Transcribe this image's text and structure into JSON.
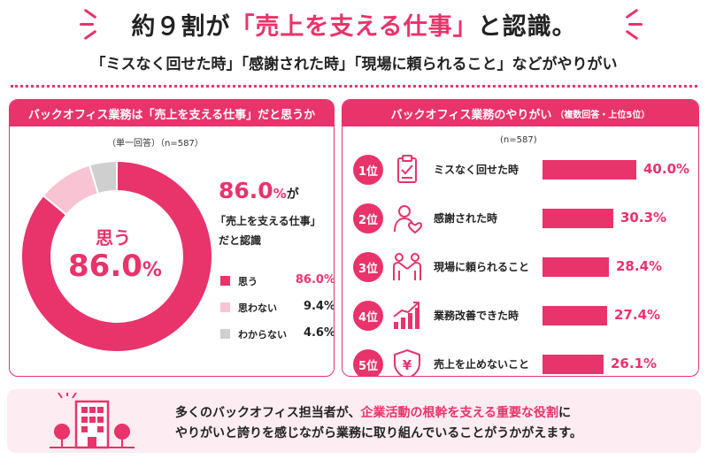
{
  "header": {
    "title_pre": "約９割が",
    "title_highlight": "「売上を支える仕事」",
    "title_post": "と認識。",
    "subtitle": "「ミスなく回せた時」「感謝された時」「現場に頼られること」などがやりがい"
  },
  "left_panel": {
    "title": "バックオフィス業務は「売上を支える仕事」だと思うか",
    "note": "（単一回答）（n=587）",
    "center_label": "思う",
    "center_value": "86.0",
    "center_unit": "%",
    "callout_value": "86.0",
    "callout_unit": "%",
    "callout_ga": "が",
    "callout_line2": "「売上を支える仕事」",
    "callout_line3": "だと認識"
  },
  "right_panel": {
    "title": "バックオフィス業務のやりがい",
    "title_sub": "（複数回答・上位5位）",
    "note": "(n=587)"
  },
  "bottom": {
    "line1_pre": "多くのバックオフィス担当者が、",
    "line1_highlight": "企業活動の根幹を支える重要な役割",
    "line1_post": "に",
    "line2": "やりがいと誇りを感じながら業務に取り組んでいることがうかがえます。"
  },
  "colors": {
    "accent": "#e8336b",
    "light_pink": "#f8c3d3",
    "gray": "#cfcfcf",
    "bottom_bg": "#fdecf1"
  },
  "chart_data": [
    {
      "type": "pie",
      "categories": [
        "思う",
        "思わない",
        "わからない"
      ],
      "values": [
        86.0,
        9.4,
        4.6
      ],
      "value_labels": [
        "86.0%",
        "9.4%",
        "4.6%"
      ],
      "colors": [
        "#e8336b",
        "#f8c3d3",
        "#cfcfcf"
      ],
      "donut": true,
      "legend": "right"
    },
    {
      "type": "bar",
      "orientation": "horizontal",
      "ranks": [
        "1位",
        "2位",
        "3位",
        "4位",
        "5位"
      ],
      "categories": [
        "ミスなく回せた時",
        "感謝された時",
        "現場に頼られること",
        "業務改善できた時",
        "売上を止めないこと"
      ],
      "values": [
        40.0,
        30.3,
        28.4,
        27.4,
        26.1
      ],
      "value_labels": [
        "40.0%",
        "30.3%",
        "28.4%",
        "27.4%",
        "26.1%"
      ],
      "icons": [
        "clipboard-check-icon",
        "person-heart-icon",
        "handshake-icon",
        "growth-chart-icon",
        "yen-shield-icon"
      ],
      "xlim": [
        0,
        40
      ]
    }
  ]
}
